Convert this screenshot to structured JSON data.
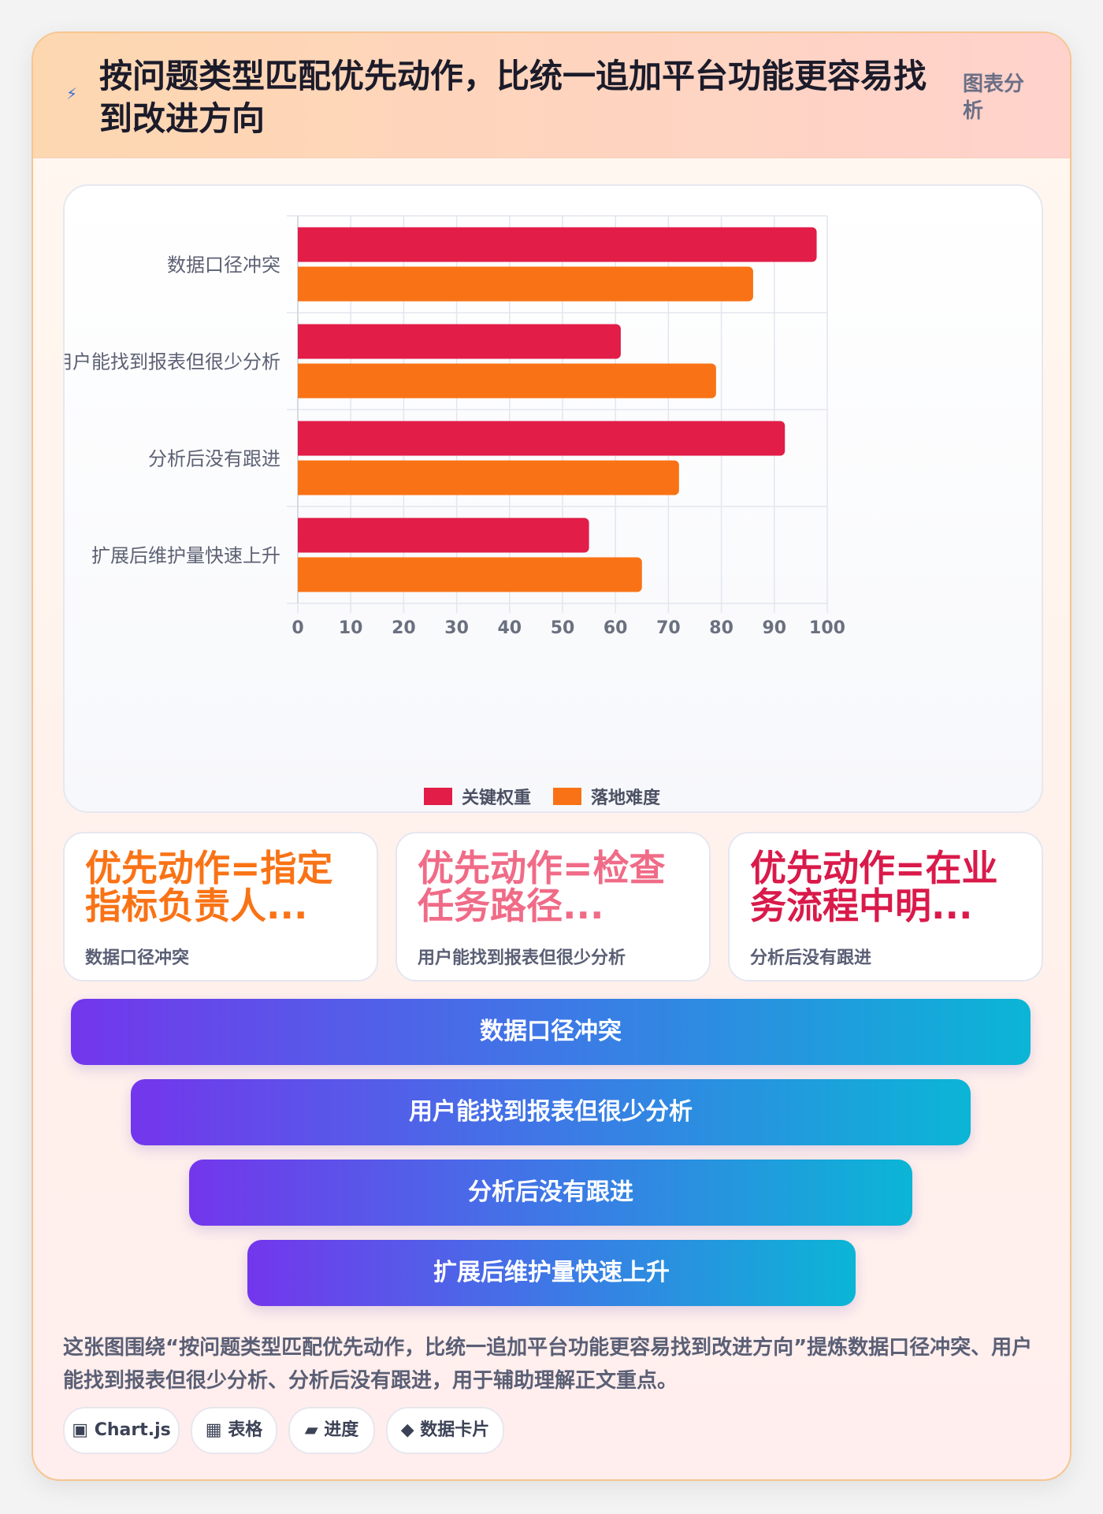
{
  "header": {
    "icon": "lightning-icon",
    "title": "按问题类型匹配优先动作，比统一追加平台功能更容易找到改进方向",
    "tag": "图表分析"
  },
  "chart_data": {
    "type": "bar",
    "orientation": "horizontal",
    "categories": [
      "数据口径冲突",
      "用户能找到报表但很少分析",
      "分析后没有跟进",
      "扩展后维护量快速上升"
    ],
    "series": [
      {
        "name": "关键权重",
        "values": [
          98,
          61,
          92,
          55
        ],
        "color": "#e11d48"
      },
      {
        "name": "落地难度",
        "values": [
          86,
          79,
          72,
          65
        ],
        "color": "#f97316"
      }
    ],
    "xlim": [
      0,
      100
    ],
    "xticks": [
      "0",
      "10",
      "20",
      "30",
      "40",
      "50",
      "60",
      "70",
      "80",
      "90",
      "100"
    ],
    "grid": true,
    "legend": "bottom"
  },
  "insights": [
    {
      "headline": "优先动作=指定指标负责人...",
      "label": "数据口径冲突",
      "color": "#f97316"
    },
    {
      "headline": "优先动作=检查任务路径...",
      "label": "用户能找到报表但很少分析",
      "color": "#f06b87"
    },
    {
      "headline": "优先动作=在业务流程中明...",
      "label": "分析后没有跟进",
      "color": "#d91a4a"
    }
  ],
  "funnel": [
    "数据口径冲突",
    "用户能找到报表但很少分析",
    "分析后没有跟进",
    "扩展后维护量快速上升"
  ],
  "description": "这张图围绕“按问题类型匹配优先动作，比统一追加平台功能更容易找到改进方向”提炼数据口径冲突、用户能找到报表但很少分析、分析后没有跟进，用于辅助理解正文重点。",
  "chips": [
    {
      "icon": "chart-icon",
      "glyph": "▣",
      "label": "Chart.js"
    },
    {
      "icon": "table-icon",
      "glyph": "▦",
      "label": "表格"
    },
    {
      "icon": "progress-icon",
      "glyph": "▰",
      "label": "进度"
    },
    {
      "icon": "diamond-icon",
      "glyph": "◆",
      "label": "数据卡片"
    }
  ]
}
